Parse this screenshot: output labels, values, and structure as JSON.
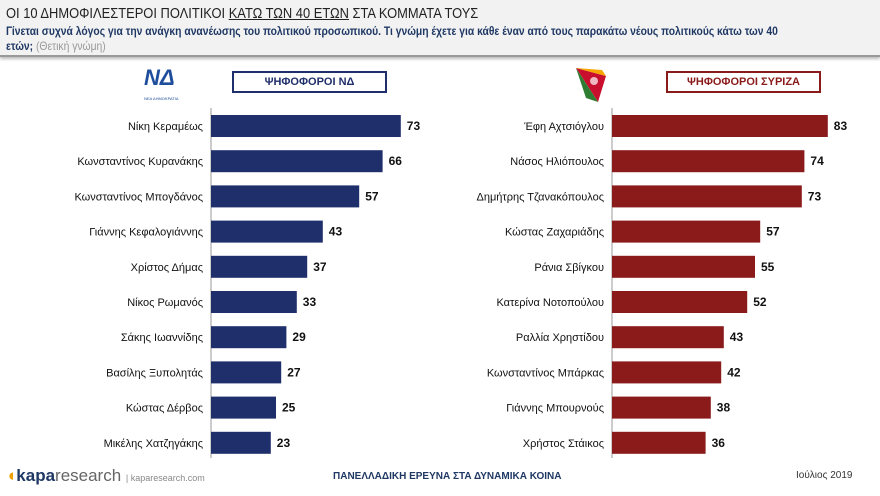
{
  "header": {
    "title_pre": "ΟΙ 10 ΔΗΜΟΦΙΛΕΣΤΕΡΟΙ ΠΟΛΙΤΙΚΟΙ ",
    "title_underlined": "ΚΑΤΩ ΤΩΝ 40 ΕΤΩΝ",
    "title_post": " ΣΤΑ ΚΟΜΜΑΤΑ ΤΟΥΣ",
    "question": "Γίνεται συχνά λόγος για την ανάγκη ανανέωσης του πολιτικού προσωπικού. Τι γνώμη έχετε για κάθε έναν από τους παρακάτω νέους πολιτικούς κάτω των 40 ετών;",
    "note": "(Θετική γνώμη)"
  },
  "footer": {
    "brand": "kapa",
    "brand2": "research",
    "url": "kaparesearch.com",
    "survey": "ΠΑΝΕΛΛΑΔΙΚΗ ΕΡΕΥΝΑ ΣΤΑ ΔΥΝΑΜΙΚΑ ΚΟΙΝΑ",
    "date": "Ιούλιος 2019"
  },
  "logos": {
    "nd": "ΝΔ ΝΕΑ ΔΗΜΟΚΡΑΤΙΑ",
    "syriza": "ΣΥΡΙΖΑ"
  },
  "chart_data": [
    {
      "type": "bar",
      "orientation": "horizontal",
      "legend": "ΨΗΦΟΦΟΡΟΙ ΝΔ",
      "color": "#1f2f6b",
      "categories": [
        "Νίκη Κεραμέως",
        "Κωνσταντίνος Κυρανάκης",
        "Κωνσταντίνος Μπογδάνος",
        "Γιάννης Κεφαλογιάννης",
        "Χρίστος Δήμας",
        "Νίκος Ρωμανός",
        "Σάκης Ιωαννίδης",
        "Βασίλης Ξυπολητάς",
        "Κώστας Δέρβος",
        "Μικέλης Χατζηγάκης"
      ],
      "values": [
        73,
        66,
        57,
        43,
        37,
        33,
        29,
        27,
        25,
        23
      ],
      "xlim": [
        0,
        100
      ]
    },
    {
      "type": "bar",
      "orientation": "horizontal",
      "legend": "ΨΗΦΟΦΟΡΟΙ ΣΥΡΙΖΑ",
      "color": "#8b1a1a",
      "categories": [
        "Έφη Αχτσιόγλου",
        "Νάσος Ηλιόπουλος",
        "Δημήτρης Τζανακόπουλος",
        "Κώστας Ζαχαριάδης",
        "Ράνια Σβίγκου",
        "Κατερίνα Νοτοπούλου",
        "Ραλλία Χρηστίδου",
        "Κωνσταντίνος Μπάρκας",
        "Γιάννης Μπουρνούς",
        "Χρήστος Στάικος"
      ],
      "values": [
        83,
        74,
        73,
        57,
        55,
        52,
        43,
        42,
        38,
        36
      ],
      "xlim": [
        0,
        100
      ]
    }
  ]
}
